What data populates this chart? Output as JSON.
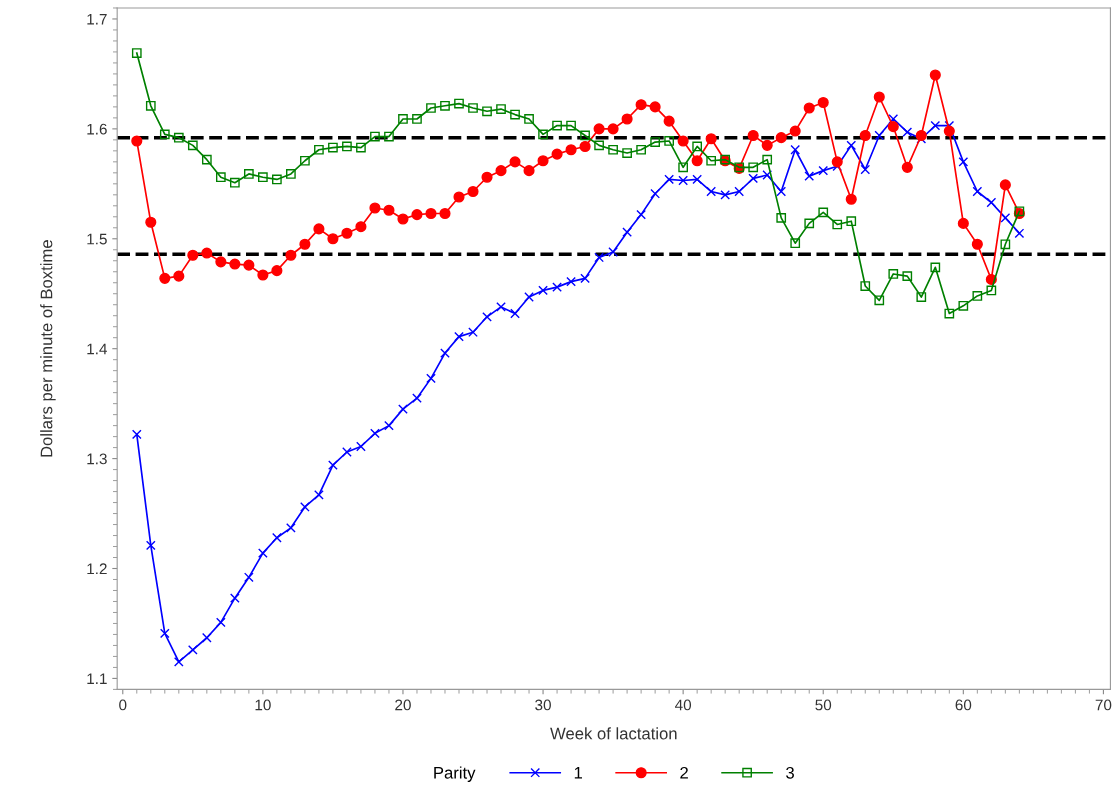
{
  "chart_data": {
    "type": "line",
    "xlabel": "Week of lactation",
    "ylabel": "Dollars per minute of Boxtime",
    "x": [
      1,
      2,
      3,
      4,
      5,
      6,
      7,
      8,
      9,
      10,
      11,
      12,
      13,
      14,
      15,
      16,
      17,
      18,
      19,
      20,
      21,
      22,
      23,
      24,
      25,
      26,
      27,
      28,
      29,
      30,
      31,
      32,
      33,
      34,
      35,
      36,
      37,
      38,
      39,
      40,
      41,
      42,
      43,
      44,
      45,
      46,
      47,
      48,
      49,
      50,
      51,
      52,
      53,
      54,
      55,
      56,
      57,
      58,
      59,
      60,
      61,
      62,
      63,
      64
    ],
    "series": [
      {
        "name": "1",
        "color": "#0000ff",
        "marker": "cross",
        "values": [
          1.322,
          1.221,
          1.141,
          1.115,
          1.126,
          1.137,
          1.151,
          1.173,
          1.192,
          1.214,
          1.228,
          1.237,
          1.256,
          1.267,
          1.294,
          1.306,
          1.311,
          1.323,
          1.33,
          1.345,
          1.355,
          1.373,
          1.396,
          1.411,
          1.415,
          1.429,
          1.438,
          1.432,
          1.447,
          1.453,
          1.456,
          1.461,
          1.464,
          1.483,
          1.488,
          1.506,
          1.522,
          1.541,
          1.554,
          1.553,
          1.554,
          1.543,
          1.54,
          1.543,
          1.555,
          1.558,
          1.543,
          1.581,
          1.557,
          1.562,
          1.566,
          1.585,
          1.563,
          1.594,
          1.609,
          1.597,
          1.591,
          1.603,
          1.603,
          1.57,
          1.543,
          1.533,
          1.519,
          1.505
        ]
      },
      {
        "name": "2",
        "color": "#ff0000",
        "marker": "circle",
        "values": [
          1.589,
          1.515,
          1.464,
          1.466,
          1.485,
          1.487,
          1.479,
          1.477,
          1.476,
          1.467,
          1.471,
          1.485,
          1.495,
          1.509,
          1.5,
          1.505,
          1.511,
          1.528,
          1.526,
          1.518,
          1.522,
          1.523,
          1.523,
          1.538,
          1.543,
          1.556,
          1.562,
          1.57,
          1.562,
          1.571,
          1.577,
          1.581,
          1.584,
          1.6,
          1.6,
          1.609,
          1.622,
          1.62,
          1.607,
          1.589,
          1.571,
          1.591,
          1.571,
          1.564,
          1.594,
          1.585,
          1.592,
          1.598,
          1.619,
          1.624,
          1.57,
          1.536,
          1.594,
          1.629,
          1.602,
          1.565,
          1.594,
          1.649,
          1.598,
          1.514,
          1.495,
          1.463,
          1.549,
          1.523
        ]
      },
      {
        "name": "3",
        "color": "#008000",
        "marker": "square",
        "values": [
          1.669,
          1.621,
          1.595,
          1.592,
          1.585,
          1.572,
          1.556,
          1.551,
          1.559,
          1.556,
          1.554,
          1.559,
          1.571,
          1.581,
          1.583,
          1.584,
          1.583,
          1.593,
          1.593,
          1.609,
          1.609,
          1.619,
          1.621,
          1.623,
          1.619,
          1.616,
          1.618,
          1.613,
          1.609,
          1.595,
          1.603,
          1.603,
          1.594,
          1.585,
          1.581,
          1.578,
          1.581,
          1.588,
          1.589,
          1.565,
          1.584,
          1.571,
          1.572,
          1.565,
          1.565,
          1.572,
          1.519,
          1.496,
          1.514,
          1.524,
          1.513,
          1.516,
          1.457,
          1.444,
          1.468,
          1.466,
          1.447,
          1.474,
          1.432,
          1.439,
          1.448,
          1.453,
          1.495,
          1.525
        ]
      }
    ],
    "xlim": [
      -0.4,
      70.5
    ],
    "xticks": [
      0,
      10,
      20,
      30,
      40,
      50,
      60,
      70
    ],
    "ylim": [
      1.09,
      1.71
    ],
    "yticks": [
      1.1,
      1.2,
      1.3,
      1.4,
      1.5,
      1.6,
      1.7
    ],
    "ref_lines": [
      {
        "axis": "y",
        "value": 1.592,
        "color": "#000000",
        "line_style": "dashed"
      },
      {
        "axis": "y",
        "value": 1.486,
        "color": "#000000",
        "line_style": "dashed"
      }
    ],
    "legend": "bottom",
    "legend_title": "Parity",
    "grid": false,
    "line_style": "solid"
  }
}
